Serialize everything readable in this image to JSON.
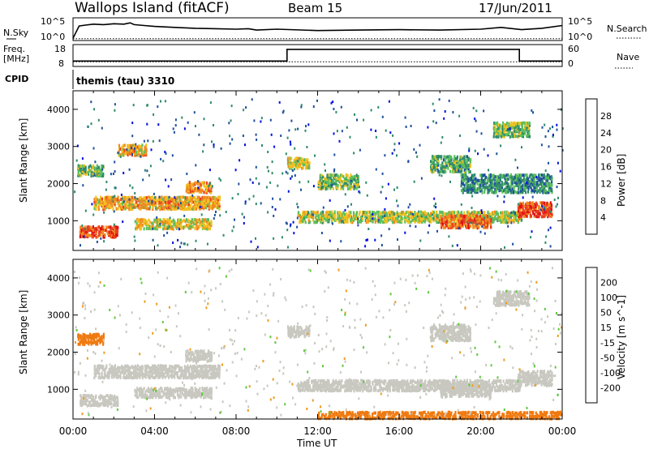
{
  "header": {
    "site": "Wallops Island (fitACF)",
    "beam": "Beam 15",
    "date": "17/Jun/2011"
  },
  "labels": {
    "nsky": "N.Sky",
    "nsearch": "N.Search",
    "freq_line1": "Freq.",
    "freq_line2": "[MHz]",
    "nave": "Nave",
    "cpid": "CPID",
    "cpid_value": "themis (tau) 3310",
    "top_tick_hi_left": "10^5",
    "top_tick_lo_left": "10^0",
    "top_tick_hi_right": "10^5",
    "top_tick_lo_right": "10^0",
    "freq_ticks": [
      "18",
      "8"
    ],
    "nave_ticks": [
      "60",
      "0"
    ],
    "xlabel": "Time UT",
    "ylabel": "Slant Range [km]"
  },
  "chart_data": [
    {
      "type": "line",
      "panel": "noise",
      "series": [
        {
          "name": "N.Sky",
          "style": "solid",
          "x": [
            0.0,
            0.3,
            0.6,
            1.0,
            1.5,
            2.0,
            2.5,
            2.8,
            3.0,
            3.5,
            4.0,
            5.0,
            6.0,
            7.0,
            8.0,
            8.6,
            9.0,
            10.0,
            12.0,
            14.0,
            16.0,
            18.0,
            20.0,
            21.0,
            22.0,
            23.0,
            24.0
          ],
          "y": [
            0.5,
            3.2,
            3.4,
            3.6,
            3.5,
            3.7,
            3.6,
            3.9,
            3.5,
            3.3,
            3.1,
            2.9,
            2.7,
            2.6,
            2.5,
            2.6,
            2.3,
            2.5,
            2.2,
            2.3,
            2.4,
            2.3,
            2.5,
            2.9,
            2.4,
            2.7,
            3.3
          ]
        },
        {
          "name": "N.Search",
          "style": "dotted",
          "x": [
            0,
            24
          ],
          "y": [
            0.4,
            0.4
          ]
        }
      ],
      "ylim": [
        0,
        5
      ]
    },
    {
      "type": "line",
      "panel": "frequency",
      "series": [
        {
          "name": "Freq.",
          "style": "solid",
          "x": [
            0,
            10.5,
            10.5,
            21.9,
            21.9,
            24
          ],
          "y": [
            10.5,
            10.5,
            15.8,
            15.8,
            10.5,
            10.5
          ]
        },
        {
          "name": "Nave",
          "style": "dotted",
          "x": [
            0,
            24
          ],
          "y": [
            10.1,
            10.1
          ]
        }
      ],
      "ylim": [
        8,
        18
      ]
    },
    {
      "type": "heatmap",
      "panel": "power",
      "title": "Power [dB]",
      "x_range_hours": [
        0,
        24
      ],
      "xticks": [
        "00:00",
        "04:00",
        "08:00",
        "12:00",
        "16:00",
        "20:00",
        "00:00"
      ],
      "yticks": [
        1000,
        2000,
        3000,
        4000
      ],
      "ylim": [
        200,
        4500
      ],
      "colorbar": {
        "ticks": [
          "4",
          "8",
          "12",
          "16",
          "20",
          "24",
          "28"
        ],
        "colors": [
          "#0010e0",
          "#1f4fa0",
          "#2e8b6a",
          "#5cbf5c",
          "#f0c020",
          "#f08a20",
          "#e84020",
          "#e01010"
        ],
        "label": "Power [dB]"
      },
      "blobs": [
        {
          "t0": 0.3,
          "t1": 2.2,
          "r0": 600,
          "r1": 900,
          "v": 26
        },
        {
          "t0": 3.0,
          "t1": 6.8,
          "r0": 820,
          "r1": 1100,
          "v": 18
        },
        {
          "t0": 1.0,
          "t1": 7.2,
          "r0": 1350,
          "r1": 1700,
          "v": 20
        },
        {
          "t0": 5.5,
          "t1": 6.8,
          "r0": 1800,
          "r1": 2100,
          "v": 22
        },
        {
          "t0": 0.2,
          "t1": 1.5,
          "r0": 2250,
          "r1": 2550,
          "v": 14
        },
        {
          "t0": 2.2,
          "t1": 3.6,
          "r0": 2800,
          "r1": 3100,
          "v": 20
        },
        {
          "t0": 10.5,
          "t1": 11.6,
          "r0": 2450,
          "r1": 2750,
          "v": 18
        },
        {
          "t0": 12.0,
          "t1": 14.0,
          "r0": 1900,
          "r1": 2300,
          "v": 14
        },
        {
          "t0": 11.0,
          "t1": 22.0,
          "r0": 1000,
          "r1": 1300,
          "v": 16
        },
        {
          "t0": 18.0,
          "t1": 20.5,
          "r0": 850,
          "r1": 1200,
          "v": 24
        },
        {
          "t0": 21.8,
          "t1": 23.5,
          "r0": 1150,
          "r1": 1550,
          "v": 26
        },
        {
          "t0": 17.5,
          "t1": 19.5,
          "r0": 2350,
          "r1": 2800,
          "v": 12
        },
        {
          "t0": 20.6,
          "t1": 22.4,
          "r0": 3300,
          "r1": 3700,
          "v": 14
        },
        {
          "t0": 19.0,
          "t1": 23.5,
          "r0": 1800,
          "r1": 2300,
          "v": 10
        }
      ]
    },
    {
      "type": "heatmap",
      "panel": "velocity",
      "title": "Velocity [m s^-1]",
      "x_range_hours": [
        0,
        24
      ],
      "xticks": [
        "00:00",
        "04:00",
        "08:00",
        "12:00",
        "16:00",
        "20:00",
        "00:00"
      ],
      "yticks": [
        1000,
        2000,
        3000,
        4000
      ],
      "ylim": [
        200,
        4500
      ],
      "colorbar": {
        "ticks": [
          "200",
          "100",
          "50",
          "15",
          "-15",
          "-50",
          "-100",
          "-200"
        ],
        "colors": [
          "#2030c0",
          "#1a6a60",
          "#2aa040",
          "#60c840",
          "#c8c8c0",
          "#f09a20",
          "#f07a10",
          "#e84010",
          "#e01010"
        ],
        "label": "Velocity [m s^-1]"
      },
      "blobs": [
        {
          "t0": 0.3,
          "t1": 2.2,
          "r0": 600,
          "r1": 900,
          "v": 0
        },
        {
          "t0": 3.0,
          "t1": 6.8,
          "r0": 820,
          "r1": 1100,
          "v": 0
        },
        {
          "t0": 1.0,
          "t1": 7.2,
          "r0": 1350,
          "r1": 1700,
          "v": 0
        },
        {
          "t0": 5.5,
          "t1": 6.8,
          "r0": 1800,
          "r1": 2100,
          "v": 0
        },
        {
          "t0": 0.2,
          "t1": 1.5,
          "r0": 2250,
          "r1": 2550,
          "v": -60
        },
        {
          "t0": 10.5,
          "t1": 11.6,
          "r0": 2450,
          "r1": 2750,
          "v": 0
        },
        {
          "t0": 11.0,
          "t1": 22.0,
          "r0": 1000,
          "r1": 1300,
          "v": 0
        },
        {
          "t0": 18.0,
          "t1": 20.5,
          "r0": 850,
          "r1": 1200,
          "v": 0
        },
        {
          "t0": 21.8,
          "t1": 23.5,
          "r0": 1150,
          "r1": 1550,
          "v": 0
        },
        {
          "t0": 17.5,
          "t1": 19.5,
          "r0": 2350,
          "r1": 2800,
          "v": 0
        },
        {
          "t0": 20.6,
          "t1": 22.4,
          "r0": 3300,
          "r1": 3700,
          "v": 0
        },
        {
          "t0": 12.0,
          "t1": 24.0,
          "r0": 250,
          "r1": 450,
          "v": -60
        }
      ]
    }
  ]
}
